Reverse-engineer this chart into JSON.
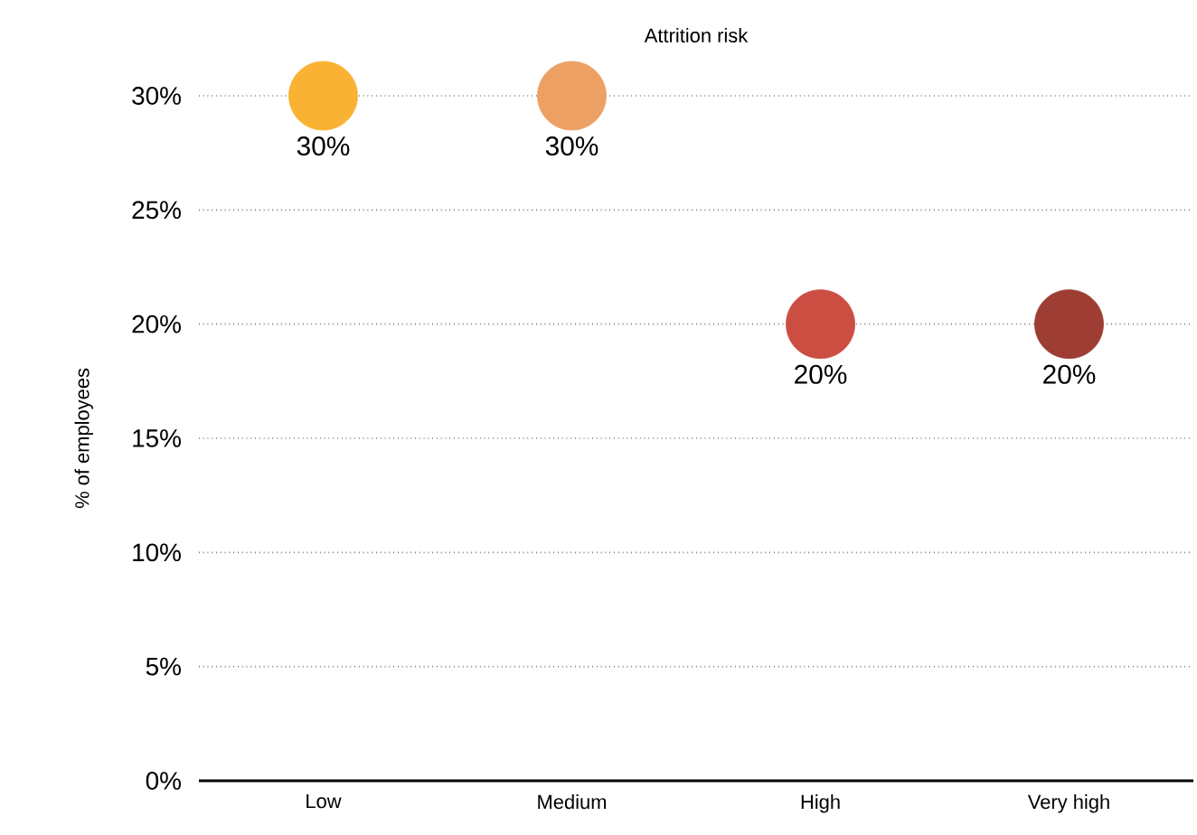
{
  "chart_data": {
    "type": "scatter",
    "title": "Attrition risk",
    "ylabel": "% of employees",
    "categories": [
      "Low",
      "Medium",
      "High",
      "Very high"
    ],
    "values": [
      30,
      30,
      20,
      20
    ],
    "value_labels": [
      "30%",
      "30%",
      "20%",
      "20%"
    ],
    "colors": [
      "#f9b233",
      "#eda064",
      "#cc4e43",
      "#9e3d33"
    ],
    "ylim": [
      0,
      30
    ],
    "yticks": [
      {
        "value": 0,
        "label": "0%"
      },
      {
        "value": 5,
        "label": "5%"
      },
      {
        "value": 10,
        "label": "10%"
      },
      {
        "value": 15,
        "label": "15%"
      },
      {
        "value": 20,
        "label": "20%"
      },
      {
        "value": 25,
        "label": "25%"
      },
      {
        "value": 30,
        "label": "30%"
      }
    ],
    "grid": "y",
    "marker": "circle"
  }
}
